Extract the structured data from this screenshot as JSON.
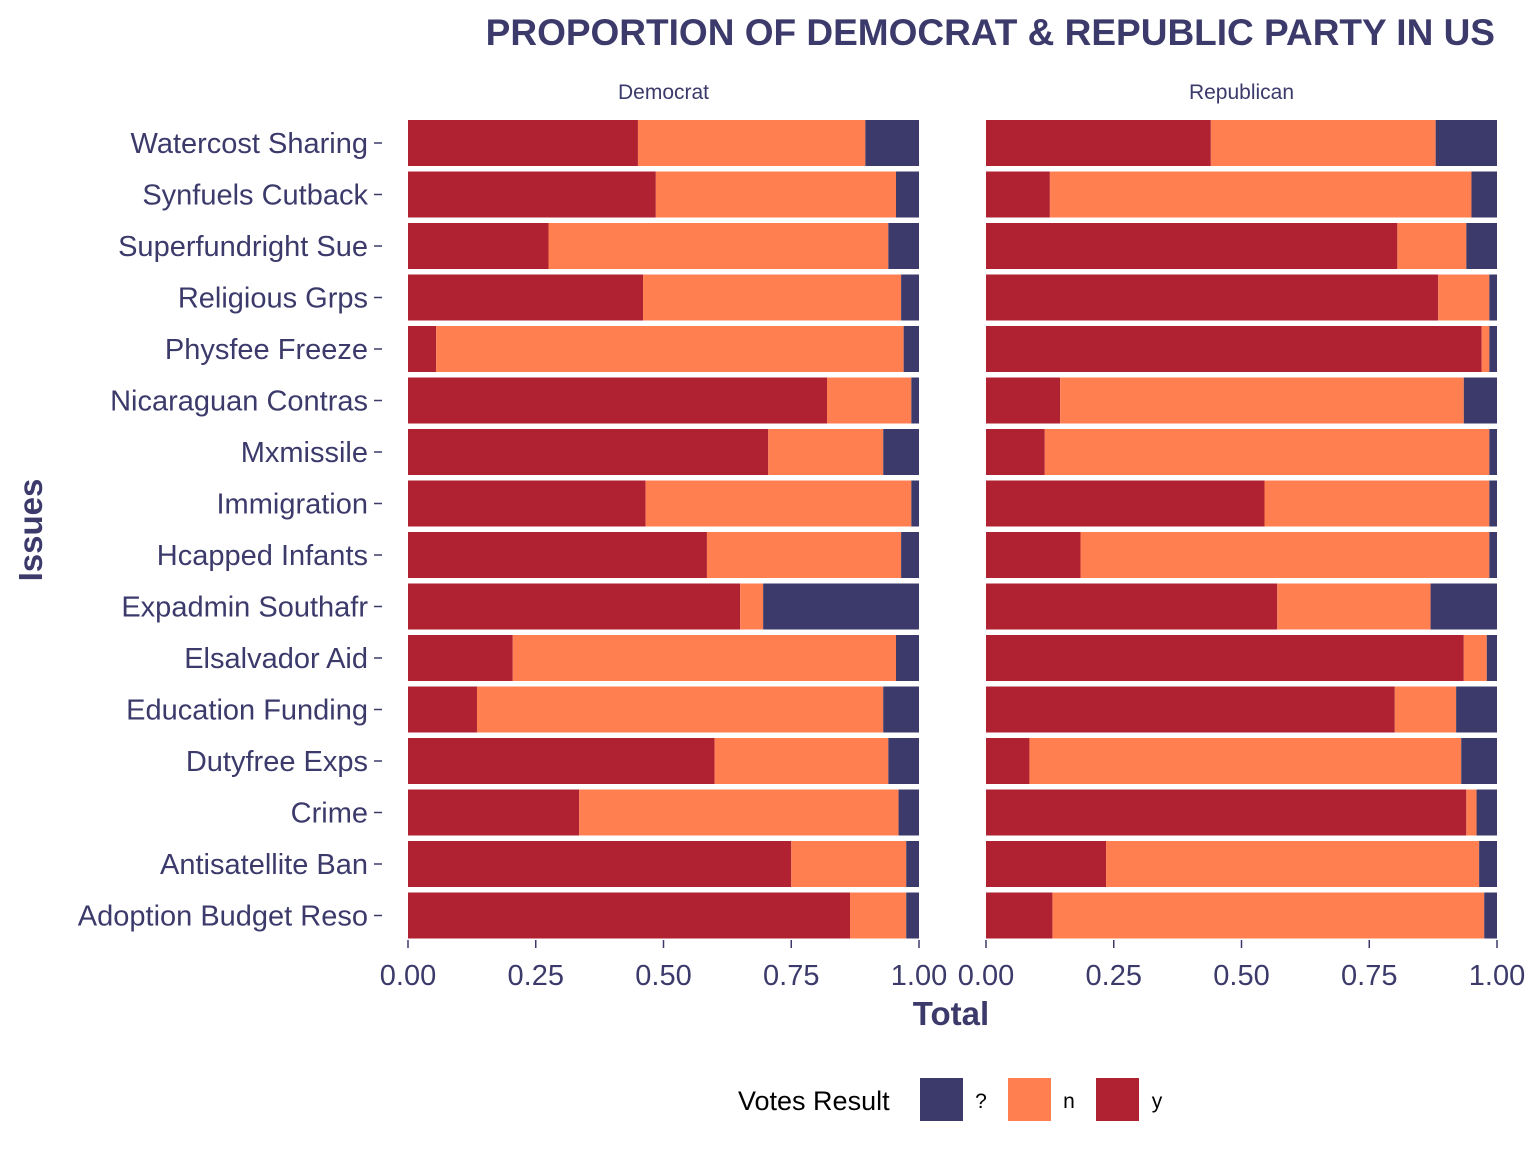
{
  "chart_data": {
    "type": "bar",
    "stacked": true,
    "orientation": "horizontal",
    "title": "PROPORTION OF DEMOCRAT & REPUBLIC PARTY IN US",
    "xlabel": "Total",
    "ylabel": "Issues",
    "xlim": [
      0,
      1
    ],
    "x_ticks": [
      "0.00",
      "0.25",
      "0.50",
      "0.75",
      "1.00"
    ],
    "legend": {
      "title": "Votes Result",
      "position": "bottom"
    },
    "categories": [
      "Watercost Sharing",
      "Synfuels Cutback",
      "Superfundright Sue",
      "Religious Grps",
      "Physfee Freeze",
      "Nicaraguan Contras",
      "Mxmissile",
      "Immigration",
      "Hcapped Infants",
      "Expadmin Southafr",
      "Elsalvador Aid",
      "Education Funding",
      "Dutyfree Exps",
      "Crime",
      "Antisatellite Ban",
      "Adoption Budget Reso"
    ],
    "series_keys": [
      {
        "name": "?",
        "color": "#3b3a6b"
      },
      {
        "name": "n",
        "color": "#ff7f50"
      },
      {
        "name": "y",
        "color": "#b02232"
      }
    ],
    "panels": [
      {
        "name": "Democrat",
        "y": [
          0.45,
          0.485,
          0.275,
          0.46,
          0.055,
          0.82,
          0.705,
          0.465,
          0.585,
          0.65,
          0.205,
          0.135,
          0.6,
          0.335,
          0.75,
          0.865
        ],
        "n": [
          0.445,
          0.47,
          0.665,
          0.505,
          0.915,
          0.165,
          0.225,
          0.52,
          0.38,
          0.045,
          0.75,
          0.795,
          0.34,
          0.625,
          0.225,
          0.11
        ],
        "?": [
          0.105,
          0.045,
          0.06,
          0.035,
          0.03,
          0.015,
          0.07,
          0.015,
          0.035,
          0.305,
          0.045,
          0.07,
          0.06,
          0.04,
          0.025,
          0.025
        ]
      },
      {
        "name": "Republican",
        "y": [
          0.44,
          0.125,
          0.805,
          0.885,
          0.97,
          0.145,
          0.115,
          0.545,
          0.185,
          0.57,
          0.935,
          0.8,
          0.085,
          0.94,
          0.235,
          0.13
        ],
        "n": [
          0.44,
          0.825,
          0.135,
          0.1,
          0.015,
          0.79,
          0.87,
          0.44,
          0.8,
          0.3,
          0.045,
          0.12,
          0.845,
          0.02,
          0.73,
          0.845
        ],
        "?": [
          0.12,
          0.05,
          0.06,
          0.015,
          0.015,
          0.065,
          0.015,
          0.015,
          0.015,
          0.13,
          0.02,
          0.08,
          0.07,
          0.04,
          0.035,
          0.025
        ]
      }
    ]
  }
}
